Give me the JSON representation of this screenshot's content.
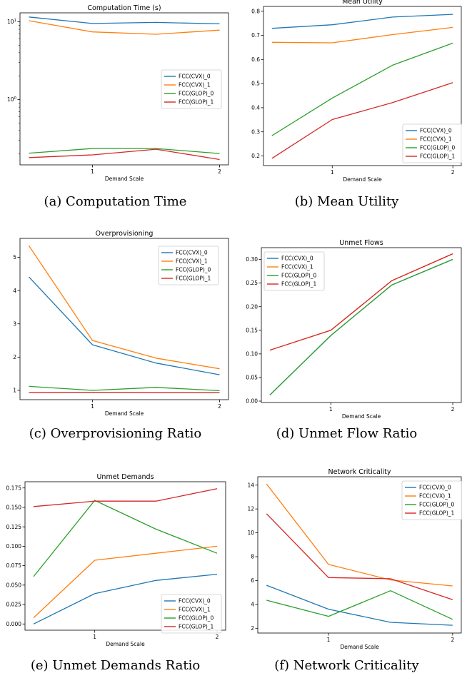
{
  "chart_data": [
    {
      "id": "a",
      "type": "line",
      "title": "Computation Time (s)",
      "caption": "(a) Computation Time",
      "xlabel": "Demand Scale",
      "ylabel": "",
      "yscale": "log",
      "x": [
        0.5,
        1.0,
        1.5,
        2.0
      ],
      "xlim": [
        0.43,
        2.07
      ],
      "xticks": [
        1,
        2
      ],
      "ylim": [
        0.145,
        13.0
      ],
      "yticks": [
        1,
        10
      ],
      "ytick_labels": [
        "10^0",
        "10^1"
      ],
      "legend": "center-right",
      "series": [
        {
          "name": "FCC(CVX)_0",
          "color": "#1f77b4",
          "values": [
            11.5,
            9.5,
            9.8,
            9.4
          ]
        },
        {
          "name": "FCC(CVX)_1",
          "color": "#ff7f0e",
          "values": [
            10.3,
            7.4,
            6.9,
            7.8
          ]
        },
        {
          "name": "FCC(GLOP)_0",
          "color": "#2ca02c",
          "values": [
            0.205,
            0.235,
            0.235,
            0.203
          ]
        },
        {
          "name": "FCC(GLOP)_1",
          "color": "#d62728",
          "values": [
            0.18,
            0.195,
            0.23,
            0.17
          ]
        }
      ]
    },
    {
      "id": "b",
      "type": "line",
      "title": "Mean Utility",
      "caption": "(b) Mean Utility",
      "xlabel": "Demand Scale",
      "ylabel": "",
      "x": [
        0.5,
        1.0,
        1.5,
        2.0
      ],
      "xlim": [
        0.43,
        2.07
      ],
      "xticks": [
        1,
        2
      ],
      "ylim": [
        0.16,
        0.82
      ],
      "yticks": [
        0.2,
        0.3,
        0.4,
        0.5,
        0.6,
        0.7,
        0.8
      ],
      "ytick_labels": [
        "0.2",
        "0.3",
        "0.4",
        "0.5",
        "0.6",
        "0.7",
        "0.8"
      ],
      "legend": "lower-right",
      "series": [
        {
          "name": "FCC(CVX)_0",
          "color": "#1f77b4",
          "values": [
            0.729,
            0.744,
            0.776,
            0.787
          ]
        },
        {
          "name": "FCC(CVX)_1",
          "color": "#ff7f0e",
          "values": [
            0.671,
            0.669,
            0.703,
            0.733
          ]
        },
        {
          "name": "FCC(GLOP)_0",
          "color": "#2ca02c",
          "values": [
            0.284,
            0.44,
            0.576,
            0.668
          ]
        },
        {
          "name": "FCC(GLOP)_1",
          "color": "#d62728",
          "values": [
            0.19,
            0.351,
            0.421,
            0.504
          ]
        }
      ]
    },
    {
      "id": "c",
      "type": "line",
      "title": "Overprovisioning",
      "caption": "(c) Overprovisioning Ratio",
      "xlabel": "Demand Scale",
      "ylabel": "",
      "x": [
        0.5,
        1.0,
        1.5,
        2.0
      ],
      "xlim": [
        0.43,
        2.07
      ],
      "xticks": [
        1,
        2
      ],
      "ylim": [
        0.72,
        5.57
      ],
      "yticks": [
        1,
        2,
        3,
        4,
        5
      ],
      "ytick_labels": [
        "1",
        "2",
        "3",
        "4",
        "5"
      ],
      "legend": "upper-right",
      "series": [
        {
          "name": "FCC(CVX)_0",
          "color": "#1f77b4",
          "values": [
            4.41,
            2.37,
            1.82,
            1.47
          ]
        },
        {
          "name": "FCC(CVX)_1",
          "color": "#ff7f0e",
          "values": [
            5.35,
            2.5,
            1.97,
            1.65
          ]
        },
        {
          "name": "FCC(GLOP)_0",
          "color": "#2ca02c",
          "values": [
            1.12,
            1.0,
            1.09,
            0.99
          ]
        },
        {
          "name": "FCC(GLOP)_1",
          "color": "#d62728",
          "values": [
            0.93,
            0.94,
            0.93,
            0.93
          ]
        }
      ]
    },
    {
      "id": "d",
      "type": "line",
      "title": "Unmet Flows",
      "caption": "(d) Unmet Flow Ratio",
      "xlabel": "Demand Scale",
      "ylabel": "",
      "x": [
        0.5,
        1.0,
        1.5,
        2.0
      ],
      "xlim": [
        0.43,
        2.07
      ],
      "xticks": [
        1,
        2
      ],
      "ylim": [
        -0.003,
        0.325
      ],
      "yticks": [
        0.0,
        0.05,
        0.1,
        0.15,
        0.2,
        0.25,
        0.3
      ],
      "ytick_labels": [
        "0.00",
        "0.05",
        "0.10",
        "0.15",
        "0.20",
        "0.25",
        "0.30"
      ],
      "legend": "upper-left",
      "series": [
        {
          "name": "FCC(CVX)_0",
          "color": "#1f77b4",
          "values": [
            0.013,
            0.139,
            0.246,
            0.3
          ]
        },
        {
          "name": "FCC(CVX)_1",
          "color": "#ff7f0e",
          "values": [
            0.108,
            0.15,
            0.255,
            0.312
          ]
        },
        {
          "name": "FCC(GLOP)_0",
          "color": "#2ca02c",
          "values": [
            0.013,
            0.139,
            0.246,
            0.3
          ]
        },
        {
          "name": "FCC(GLOP)_1",
          "color": "#d62728",
          "values": [
            0.108,
            0.15,
            0.255,
            0.312
          ]
        }
      ]
    },
    {
      "id": "e",
      "type": "line",
      "title": "Unmet Demands",
      "caption": "(e) Unmet Demands Ratio",
      "xlabel": "Demand Scale",
      "ylabel": "",
      "x": [
        0.5,
        1.0,
        1.5,
        2.0
      ],
      "xlim": [
        0.43,
        2.07
      ],
      "xticks": [
        1,
        2
      ],
      "ylim": [
        -0.008,
        0.183
      ],
      "yticks": [
        0.0,
        0.025,
        0.05,
        0.075,
        0.1,
        0.125,
        0.15,
        0.175
      ],
      "ytick_labels": [
        "0.000",
        "0.025",
        "0.050",
        "0.075",
        "0.100",
        "0.125",
        "0.150",
        "0.175"
      ],
      "legend": "lower-right",
      "series": [
        {
          "name": "FCC(CVX)_0",
          "color": "#1f77b4",
          "values": [
            0.0,
            0.039,
            0.056,
            0.064
          ]
        },
        {
          "name": "FCC(CVX)_1",
          "color": "#ff7f0e",
          "values": [
            0.008,
            0.082,
            0.091,
            0.1
          ]
        },
        {
          "name": "FCC(GLOP)_0",
          "color": "#2ca02c",
          "values": [
            0.061,
            0.159,
            0.122,
            0.091
          ]
        },
        {
          "name": "FCC(GLOP)_1",
          "color": "#d62728",
          "values": [
            0.151,
            0.158,
            0.158,
            0.174
          ]
        }
      ]
    },
    {
      "id": "f",
      "type": "line",
      "title": "Network Criticality",
      "caption": "(f) Network Criticality",
      "xlabel": "Demand Scale",
      "ylabel": "",
      "x": [
        0.5,
        1.0,
        1.5,
        2.0
      ],
      "xlim": [
        0.43,
        2.07
      ],
      "xticks": [
        1,
        2
      ],
      "ylim": [
        1.6,
        14.7
      ],
      "yticks": [
        2,
        4,
        6,
        8,
        10,
        12,
        14
      ],
      "ytick_labels": [
        "2",
        "4",
        "6",
        "8",
        "10",
        "12",
        "14"
      ],
      "legend": "upper-right",
      "series": [
        {
          "name": "FCC(CVX)_0",
          "color": "#1f77b4",
          "values": [
            5.6,
            3.6,
            2.5,
            2.25
          ]
        },
        {
          "name": "FCC(CVX)_1",
          "color": "#ff7f0e",
          "values": [
            14.1,
            7.35,
            6.05,
            5.55
          ]
        },
        {
          "name": "FCC(GLOP)_0",
          "color": "#2ca02c",
          "values": [
            4.35,
            3.0,
            5.15,
            2.75
          ]
        },
        {
          "name": "FCC(GLOP)_1",
          "color": "#d62728",
          "values": [
            11.6,
            6.25,
            6.15,
            4.4
          ]
        }
      ]
    }
  ]
}
